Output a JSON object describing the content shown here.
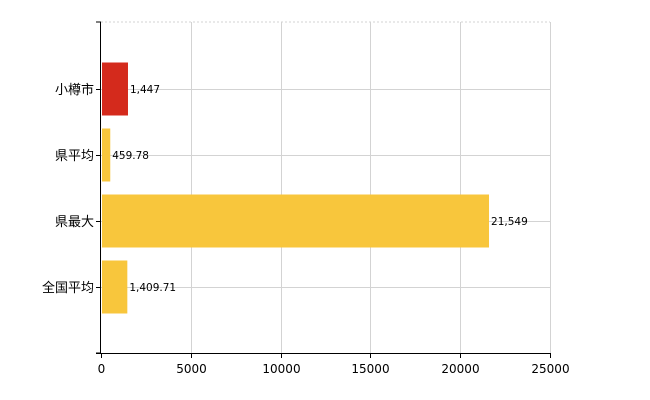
{
  "chart_data": {
    "type": "bar",
    "orientation": "horizontal",
    "categories": [
      "小樽市",
      "県平均",
      "県最大",
      "全国平均"
    ],
    "values": [
      1447,
      459.78,
      21549,
      1409.71
    ],
    "data_labels": [
      "1,447",
      "459.78",
      "21,549",
      "1,409.71"
    ],
    "bar_colors": [
      "#d42a1c",
      "#f8c63c",
      "#f8c63c",
      "#f8c63c"
    ],
    "xlim": [
      0,
      25000
    ],
    "xticks": [
      0,
      5000,
      10000,
      15000,
      20000,
      25000
    ],
    "xtick_labels": [
      "0",
      "5000",
      "10000",
      "15000",
      "20000",
      "25000"
    ],
    "grid": true,
    "legend": "none",
    "title": "",
    "xlabel": "",
    "ylabel": ""
  }
}
